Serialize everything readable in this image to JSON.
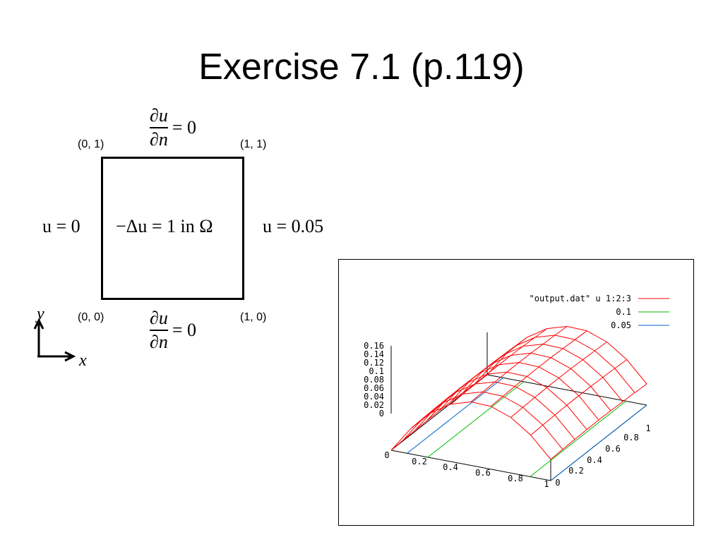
{
  "title": "Exercise 7.1 (p.119)",
  "diagram": {
    "corners": {
      "top_left": "(0, 1)",
      "top_right": "(1, 1)",
      "bottom_left": "(0, 0)",
      "bottom_right": "(1, 0)"
    },
    "top_bc": {
      "num": "∂u",
      "den": "∂n",
      "rhs": "= 0"
    },
    "bottom_bc": {
      "num": "∂u",
      "den": "∂n",
      "rhs": "= 0"
    },
    "left_bc": "u = 0",
    "right_bc": "u = 0.05",
    "equation": "−Δu = 1  in Ω",
    "axis_y": "y",
    "axis_x": "x"
  },
  "plot": {
    "legend": [
      "\"output.dat\" u 1:2:3",
      "0.1",
      "0.05"
    ],
    "legend_colors": [
      "#ff0000",
      "#00bb00",
      "#0066cc"
    ],
    "z_ticks": [
      "0.16",
      "0.14",
      "0.12",
      "0.1",
      "0.08",
      "0.06",
      "0.04",
      "0.02",
      "0"
    ],
    "x_ticks": [
      "0",
      "0.2",
      "0.4",
      "0.6",
      "0.8",
      "1"
    ],
    "y_ticks": [
      "0",
      "0.2",
      "0.4",
      "0.6",
      "0.8",
      "1"
    ]
  }
}
